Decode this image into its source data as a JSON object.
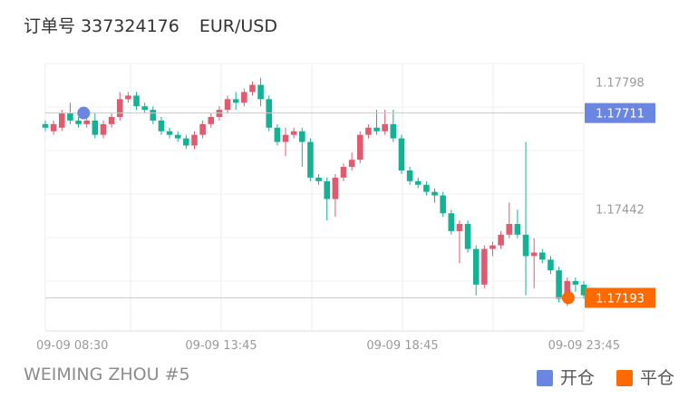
{
  "header": {
    "order_label": "订单号 337324176",
    "symbol": "EUR/USD"
  },
  "footer": {
    "account": "WEIMING ZHOU #5"
  },
  "legend": [
    {
      "label": "开仓",
      "color": "#6b86e0"
    },
    {
      "label": "平仓",
      "color": "#ff6a00"
    }
  ],
  "chart_data": {
    "type": "candlestick",
    "x_ticks": [
      "09-09 08:30",
      "09-09 13:45",
      "09-09 18:45",
      "09-09 23:45"
    ],
    "y_ticks": [
      "1.17798",
      "1.17442"
    ],
    "ylim": [
      1.171,
      1.1785
    ],
    "grid": true,
    "open_price": {
      "label": "1.17711",
      "value": 1.17711,
      "color": "#6b86e0",
      "candle_index": 2
    },
    "close_price": {
      "label": "1.17193",
      "value": 1.17193,
      "color": "#ff6a00",
      "candle_index": 64
    },
    "up_color": "#e05b6f",
    "down_color": "#12b394",
    "candles": [
      [
        1.1768,
        1.1767,
        1.1769,
        1.1766
      ],
      [
        1.1766,
        1.1768,
        1.1769,
        1.1765
      ],
      [
        1.1767,
        1.1771,
        1.1772,
        1.1766
      ],
      [
        1.1771,
        1.1769,
        1.1774,
        1.1768
      ],
      [
        1.1769,
        1.1768,
        1.177,
        1.1767
      ],
      [
        1.1768,
        1.1769,
        1.177,
        1.1767
      ],
      [
        1.1769,
        1.1765,
        1.1771,
        1.1764
      ],
      [
        1.1765,
        1.1768,
        1.1769,
        1.1764
      ],
      [
        1.1768,
        1.177,
        1.1771,
        1.1767
      ],
      [
        1.177,
        1.1775,
        1.1777,
        1.1769
      ],
      [
        1.1775,
        1.1776,
        1.1777,
        1.1774
      ],
      [
        1.1776,
        1.1773,
        1.1777,
        1.1772
      ],
      [
        1.1773,
        1.1772,
        1.1774,
        1.1771
      ],
      [
        1.1772,
        1.1769,
        1.1773,
        1.1768
      ],
      [
        1.1769,
        1.1766,
        1.177,
        1.1765
      ],
      [
        1.1766,
        1.1765,
        1.1767,
        1.1764
      ],
      [
        1.1765,
        1.1764,
        1.1766,
        1.1763
      ],
      [
        1.1764,
        1.1762,
        1.1765,
        1.1761
      ],
      [
        1.1762,
        1.1765,
        1.1766,
        1.1761
      ],
      [
        1.1765,
        1.1768,
        1.1769,
        1.1764
      ],
      [
        1.1768,
        1.177,
        1.1771,
        1.1767
      ],
      [
        1.177,
        1.1772,
        1.1773,
        1.1769
      ],
      [
        1.1772,
        1.1775,
        1.1776,
        1.1771
      ],
      [
        1.1775,
        1.1774,
        1.1777,
        1.1772
      ],
      [
        1.1774,
        1.1777,
        1.1778,
        1.1773
      ],
      [
        1.1777,
        1.1779,
        1.178,
        1.1776
      ],
      [
        1.1779,
        1.1775,
        1.1781,
        1.1773
      ],
      [
        1.1775,
        1.1767,
        1.1776,
        1.1766
      ],
      [
        1.1767,
        1.1763,
        1.1768,
        1.1762
      ],
      [
        1.1763,
        1.1765,
        1.1767,
        1.1759
      ],
      [
        1.1765,
        1.1766,
        1.1767,
        1.1764
      ],
      [
        1.1766,
        1.1763,
        1.1767,
        1.1756
      ],
      [
        1.1763,
        1.1753,
        1.1764,
        1.1752
      ],
      [
        1.1753,
        1.1752,
        1.1754,
        1.1751
      ],
      [
        1.1752,
        1.1747,
        1.1753,
        1.1741
      ],
      [
        1.1747,
        1.1753,
        1.1754,
        1.1742
      ],
      [
        1.1753,
        1.1756,
        1.1757,
        1.1752
      ],
      [
        1.1756,
        1.1758,
        1.176,
        1.1755
      ],
      [
        1.1758,
        1.1765,
        1.1766,
        1.1757
      ],
      [
        1.1765,
        1.1767,
        1.1768,
        1.1764
      ],
      [
        1.1767,
        1.1766,
        1.1772,
        1.1765
      ],
      [
        1.1766,
        1.1768,
        1.1772,
        1.1765
      ],
      [
        1.1768,
        1.1764,
        1.1772,
        1.1763
      ],
      [
        1.1764,
        1.1755,
        1.1765,
        1.1754
      ],
      [
        1.1755,
        1.1752,
        1.1756,
        1.1751
      ],
      [
        1.1752,
        1.1751,
        1.1753,
        1.175
      ],
      [
        1.1751,
        1.1749,
        1.1752,
        1.1748
      ],
      [
        1.1749,
        1.1748,
        1.175,
        1.1746
      ],
      [
        1.1748,
        1.1743,
        1.1749,
        1.1742
      ],
      [
        1.1743,
        1.1738,
        1.1744,
        1.1737
      ],
      [
        1.1738,
        1.174,
        1.1741,
        1.1729
      ],
      [
        1.174,
        1.1733,
        1.1741,
        1.1732
      ],
      [
        1.1733,
        1.1723,
        1.1734,
        1.172
      ],
      [
        1.1723,
        1.1733,
        1.1734,
        1.1722
      ],
      [
        1.1733,
        1.1734,
        1.1735,
        1.1731
      ],
      [
        1.1734,
        1.1737,
        1.1738,
        1.1733
      ],
      [
        1.1737,
        1.174,
        1.1746,
        1.1736
      ],
      [
        1.174,
        1.1737,
        1.1744,
        1.1736
      ],
      [
        1.1737,
        1.1731,
        1.1763,
        1.172
      ],
      [
        1.1731,
        1.1732,
        1.1736,
        1.1722
      ],
      [
        1.1732,
        1.173,
        1.1733,
        1.1729
      ],
      [
        1.173,
        1.1727,
        1.1731,
        1.1726
      ],
      [
        1.1727,
        1.1719,
        1.1728,
        1.1718
      ],
      [
        1.1719,
        1.1724,
        1.1725,
        1.1717
      ],
      [
        1.1724,
        1.1723,
        1.1725,
        1.1721
      ],
      [
        1.1723,
        1.172,
        1.1724,
        1.1719
      ]
    ]
  }
}
